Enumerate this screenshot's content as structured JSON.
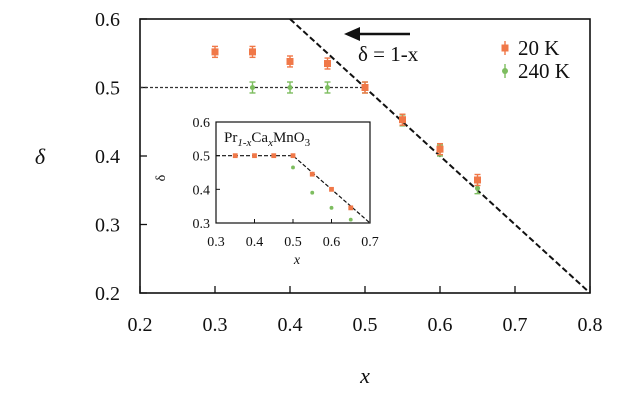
{
  "chart_data": [
    {
      "type": "scatter",
      "title": "",
      "xlabel": "x",
      "ylabel": "δ",
      "xlim": [
        0.2,
        0.8
      ],
      "ylim": [
        0.2,
        0.6
      ],
      "xticks": [
        "0.2",
        "0.3",
        "0.4",
        "0.5",
        "0.6",
        "0.7",
        "0.8"
      ],
      "yticks": [
        "0.2",
        "0.3",
        "0.4",
        "0.5",
        "0.6"
      ],
      "legend_position": "top-right",
      "series": [
        {
          "name": "20 K",
          "color": "#f07848",
          "marker": "square",
          "x": [
            0.3,
            0.35,
            0.4,
            0.45,
            0.5,
            0.55,
            0.6,
            0.65
          ],
          "y": [
            0.552,
            0.552,
            0.538,
            0.535,
            0.5,
            0.453,
            0.41,
            0.365
          ],
          "yerr": 0.008
        },
        {
          "name": "240 K",
          "color": "#7dbd5f",
          "marker": "circle",
          "x": [
            0.35,
            0.4,
            0.45,
            0.5,
            0.55,
            0.6,
            0.65
          ],
          "y": [
            0.5,
            0.5,
            0.5,
            0.5,
            0.452,
            0.408,
            0.353
          ],
          "yerr": 0.008
        }
      ],
      "reference_lines": [
        {
          "label": "δ = 1-x",
          "style": "dashed",
          "x": [
            0.4,
            0.8
          ],
          "y": [
            0.6,
            0.2
          ]
        },
        {
          "label": "",
          "style": "dotted",
          "x": [
            0.2,
            0.5
          ],
          "y": [
            0.5,
            0.5
          ]
        }
      ],
      "annotations": [
        "δ = 1-x"
      ]
    },
    {
      "type": "scatter",
      "title": "Pr1-xCaxMnO3",
      "xlabel": "x",
      "ylabel": "δ",
      "xlim": [
        0.3,
        0.7
      ],
      "ylim": [
        0.3,
        0.6
      ],
      "xticks": [
        "0.3",
        "0.4",
        "0.5",
        "0.6",
        "0.7"
      ],
      "yticks": [
        "0.3",
        "0.4",
        "0.5",
        "0.6"
      ],
      "series": [
        {
          "color": "#f07848",
          "marker": "square",
          "x": [
            0.35,
            0.4,
            0.45,
            0.5,
            0.55,
            0.6,
            0.65
          ],
          "y": [
            0.5,
            0.5,
            0.5,
            0.5,
            0.445,
            0.4,
            0.345
          ]
        },
        {
          "color": "#7dbd5f",
          "marker": "circle",
          "x": [
            0.35,
            0.4,
            0.45,
            0.5,
            0.55,
            0.6,
            0.65
          ],
          "y": [
            0.5,
            0.5,
            0.5,
            0.465,
            0.39,
            0.345,
            0.31
          ]
        }
      ],
      "reference_lines": [
        {
          "label": "",
          "style": "dashed",
          "x": [
            0.3,
            0.5,
            0.7
          ],
          "y": [
            0.5,
            0.5,
            0.3
          ]
        }
      ]
    }
  ]
}
